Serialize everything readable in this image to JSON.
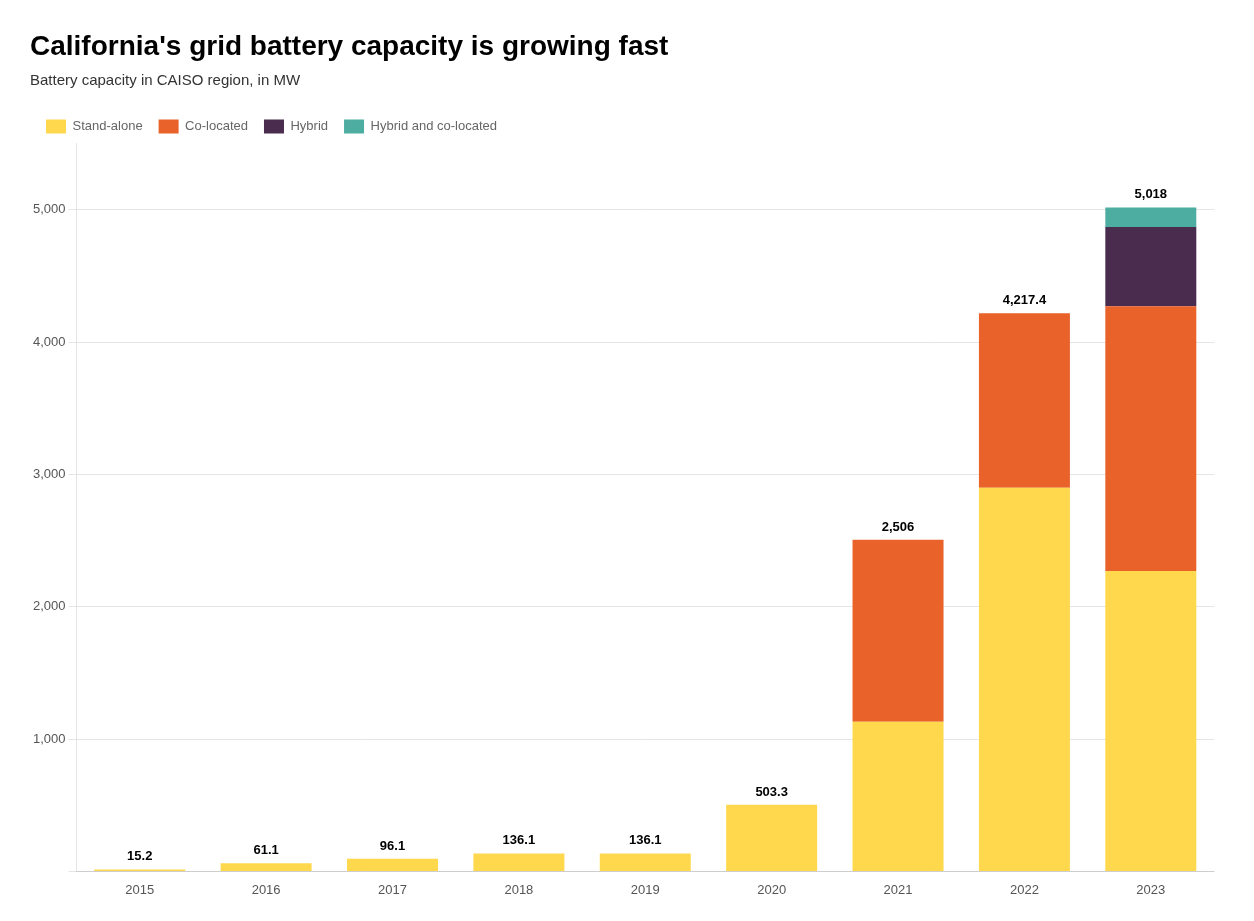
{
  "chart_data": {
    "type": "bar",
    "title": "California's grid battery capacity is growing fast",
    "subtitle": "Battery capacity in CAISO region, in MW",
    "categories": [
      "2015",
      "2016",
      "2017",
      "2018",
      "2019",
      "2020",
      "2021",
      "2022",
      "2023"
    ],
    "series": [
      {
        "name": "Stand-alone",
        "color": "#FFD84D",
        "values": [
          15.2,
          61.1,
          96.1,
          136.1,
          136.1,
          503.3,
          1130.0,
          2900.0,
          2270.0
        ]
      },
      {
        "name": "Co-located",
        "color": "#E8622A",
        "values": [
          0,
          0,
          0,
          0,
          0,
          0,
          1376.0,
          1317.4,
          2000.0
        ]
      },
      {
        "name": "Hybrid",
        "color": "#4A2D4E",
        "values": [
          0,
          0,
          0,
          0,
          0,
          0,
          0,
          0,
          600.0
        ]
      },
      {
        "name": "Hybrid and co-located",
        "color": "#4DADA0",
        "values": [
          0,
          0,
          0,
          0,
          0,
          0,
          0,
          0,
          148.0
        ]
      }
    ],
    "stacked": true,
    "totals": [
      15.2,
      61.1,
      96.1,
      136.1,
      136.1,
      503.3,
      2506,
      4217.4,
      5018
    ],
    "total_labels": [
      "15.2",
      "61.1",
      "96.1",
      "136.1",
      "136.1",
      "503.3",
      "2,506",
      "4,217.4",
      "5,018"
    ],
    "ylim": [
      0,
      5500
    ],
    "yticks": [
      {
        "value": 0,
        "label": null
      },
      {
        "value": 1000,
        "label": "1,000"
      },
      {
        "value": 2000,
        "label": "2,000"
      },
      {
        "value": 3000,
        "label": "3,000"
      },
      {
        "value": 4000,
        "label": "4,000"
      },
      {
        "value": 5000,
        "label": "5,000"
      }
    ],
    "grid": true,
    "legend": "top"
  }
}
